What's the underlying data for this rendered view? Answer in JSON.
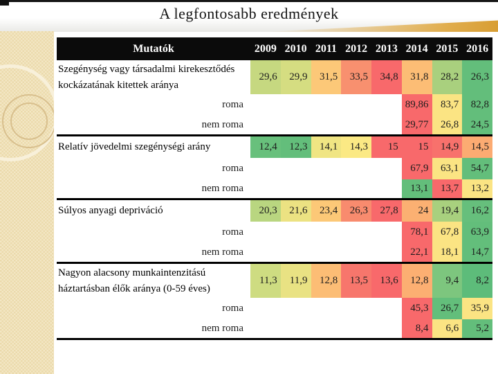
{
  "slide": {
    "title": "A legfontosabb eredmények"
  },
  "accent_colors": {
    "gold_swoosh": "#d89e34",
    "sidebar_beige": "#ebdaab",
    "header_bg": "#0b0b0b",
    "scale_red": "#f8696b",
    "scale_yellow": "#fbe483",
    "scale_green": "#63be7b"
  },
  "table": {
    "header": {
      "label": "Mutatók",
      "years": [
        "2009",
        "2010",
        "2011",
        "2012",
        "2013",
        "2014",
        "2015",
        "2016"
      ]
    },
    "row_labels": {
      "roma": "roma",
      "nem_roma": "nem roma"
    },
    "sections": [
      {
        "indicator": "Szegénység vagy társadalmi kirekesztődés kockázatának kitettek aránya",
        "values": [
          "29,6",
          "29,9",
          "31,5",
          "33,5",
          "34,8",
          "31,8",
          "28,2",
          "26,3"
        ],
        "colors": [
          "#c6d880",
          "#d5dd81",
          "#fcc878",
          "#f8906f",
          "#f8696b",
          "#fcbd75",
          "#a9d07e",
          "#63be7b"
        ],
        "roma": {
          "values": [
            "89,86",
            "83,7",
            "82,8"
          ],
          "colors": [
            "#f8696b",
            "#fbe483",
            "#63be7b"
          ]
        },
        "nem_roma": {
          "values": [
            "29,77",
            "26,8",
            "24,5"
          ],
          "colors": [
            "#f8696b",
            "#fbe483",
            "#63be7b"
          ]
        }
      },
      {
        "indicator": "Relatív jövedelmi szegénységi arány",
        "values": [
          "12,4",
          "12,3",
          "14,1",
          "14,3",
          "15",
          "15",
          "14,9",
          "14,5"
        ],
        "colors": [
          "#68c07c",
          "#63be7b",
          "#f0e583",
          "#fbe984",
          "#f8696b",
          "#f8696b",
          "#f8716c",
          "#fcab72"
        ],
        "roma": {
          "values": [
            "67,9",
            "63,1",
            "54,7"
          ],
          "colors": [
            "#f8696b",
            "#fbe483",
            "#63be7b"
          ]
        },
        "nem_roma": {
          "values": [
            "13,1",
            "13,7",
            "13,2"
          ],
          "colors": [
            "#63be7b",
            "#f8696b",
            "#fbe483"
          ]
        }
      },
      {
        "indicator": "Súlyos anyagi depriváció",
        "values": [
          "20,3",
          "21,6",
          "23,4",
          "26,3",
          "27,8",
          "24",
          "19,4",
          "16,2"
        ],
        "colors": [
          "#b9d680",
          "#ece282",
          "#fcc877",
          "#f88b6e",
          "#f8696b",
          "#fbb072",
          "#a8d07e",
          "#66bf7c"
        ],
        "roma": {
          "values": [
            "78,1",
            "67,8",
            "63,9"
          ],
          "colors": [
            "#f8696b",
            "#fbe483",
            "#63be7b"
          ]
        },
        "nem_roma": {
          "values": [
            "22,1",
            "18,1",
            "14,7"
          ],
          "colors": [
            "#f8696b",
            "#fbe483",
            "#63be7b"
          ]
        }
      },
      {
        "indicator": "Nagyon alacsony munkaintenzitású háztartásban élők aránya (0-59 éves)",
        "values": [
          "11,3",
          "11,9",
          "12,8",
          "13,5",
          "13,6",
          "12,8",
          "9,4",
          "8,2"
        ],
        "colors": [
          "#cedc81",
          "#e9e283",
          "#fcbd75",
          "#f7766c",
          "#f8696b",
          "#fcaf72",
          "#7dc67e",
          "#5dbc7a"
        ],
        "roma": {
          "values": [
            "45,3",
            "26,7",
            "35,9"
          ],
          "colors": [
            "#f8696b",
            "#63be7b",
            "#fbe483"
          ]
        },
        "nem_roma": {
          "values": [
            "8,4",
            "6,6",
            "5,2"
          ],
          "colors": [
            "#f8696b",
            "#fbe483",
            "#63be7b"
          ]
        }
      }
    ]
  }
}
